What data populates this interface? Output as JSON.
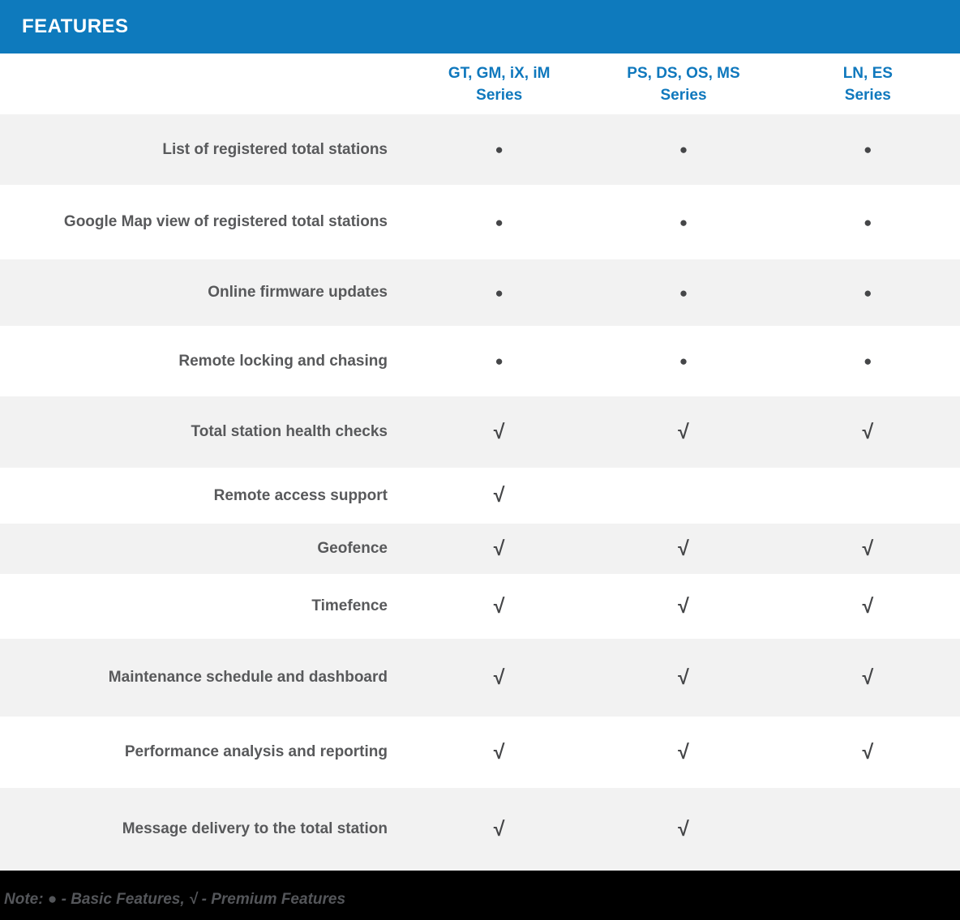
{
  "header": {
    "title": "FEATURES"
  },
  "columns": [
    {
      "line1": "GT, GM, iX, iM",
      "line2": "Series"
    },
    {
      "line1": "PS, DS, OS, MS",
      "line2": "Series"
    },
    {
      "line1": "LN, ES",
      "line2": "Series"
    }
  ],
  "symbols": {
    "basic": "●",
    "premium": "√"
  },
  "rows": [
    {
      "label": "List of registered total stations",
      "values": [
        "●",
        "●",
        "●"
      ]
    },
    {
      "label": "Google Map view of registered total stations",
      "values": [
        "●",
        "●",
        "●"
      ]
    },
    {
      "label": "Online firmware updates",
      "values": [
        "●",
        "●",
        "●"
      ]
    },
    {
      "label": "Remote locking and chasing",
      "values": [
        "●",
        "●",
        "●"
      ]
    },
    {
      "label": "Total station health checks",
      "values": [
        "√",
        "√",
        "√"
      ]
    },
    {
      "label": "Remote access support",
      "values": [
        "√",
        "",
        ""
      ]
    },
    {
      "label": "Geofence",
      "values": [
        "√",
        "√",
        "√"
      ]
    },
    {
      "label": "Timefence",
      "values": [
        "√",
        "√",
        "√"
      ]
    },
    {
      "label": "Maintenance schedule and dashboard",
      "values": [
        "√",
        "√",
        "√"
      ]
    },
    {
      "label": "Performance analysis and reporting",
      "values": [
        "√",
        "√",
        "√"
      ]
    },
    {
      "label": "Message delivery to the total station",
      "values": [
        "√",
        "√",
        ""
      ]
    }
  ],
  "note": {
    "text": "Note: ● - Basic Features, √ - Premium Features"
  },
  "colors": {
    "header_bar_blue": "#0e7abd",
    "column_header_blue": "#0f78bd",
    "row_alt_gray": "#f2f2f2",
    "row_white": "#ffffff",
    "label_gray": "#58595b",
    "symbol_gray": "#454648",
    "footer_black": "#000000",
    "footer_text_gray": "#54565a",
    "title_white": "#ffffff"
  }
}
